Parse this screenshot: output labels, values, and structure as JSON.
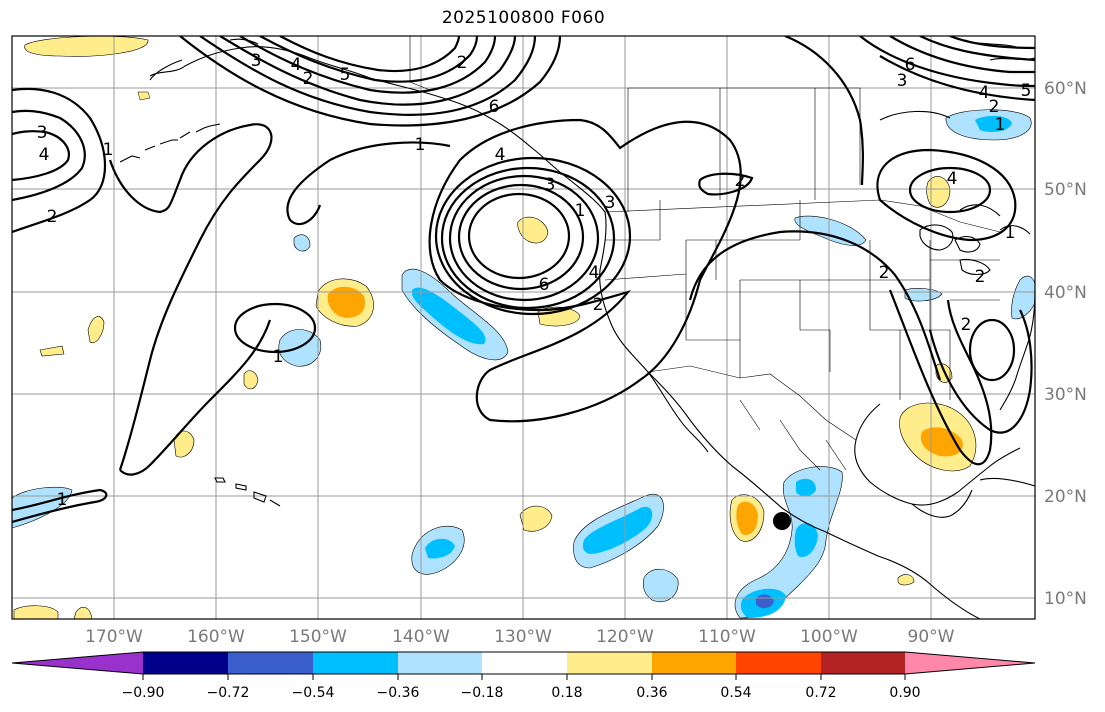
{
  "title": "2025100800 F060",
  "map": {
    "lat_ticks": [
      "60°N",
      "50°N",
      "40°N",
      "30°N",
      "20°N",
      "10°N"
    ],
    "lon_ticks": [
      "170°W",
      "160°W",
      "150°W",
      "140°W",
      "130°W",
      "120°W",
      "110°W",
      "100°W",
      "90°W"
    ],
    "contour_labels": [
      "3",
      "4",
      "2",
      "1",
      "1",
      "4",
      "3",
      "2",
      "1",
      "5",
      "6",
      "1",
      "2",
      "3",
      "4",
      "6",
      "2",
      "2",
      "1",
      "4",
      "3",
      "2",
      "5",
      "6",
      "4",
      "2",
      "1",
      "2",
      "4",
      "3",
      "2",
      "1"
    ],
    "marker": "storm-center-dot"
  },
  "colorbar": {
    "labels": [
      "−0.90",
      "−0.72",
      "−0.54",
      "−0.36",
      "−0.18",
      "0.18",
      "0.36",
      "0.54",
      "0.72",
      "0.90"
    ],
    "colors": [
      "#9932cc",
      "#00008b",
      "#3a5fcd",
      "#00bfff",
      "#aee2ff",
      "#ffffff",
      "#ffec8b",
      "#ffa500",
      "#ff4500",
      "#b22222",
      "#ff88aa"
    ]
  }
}
